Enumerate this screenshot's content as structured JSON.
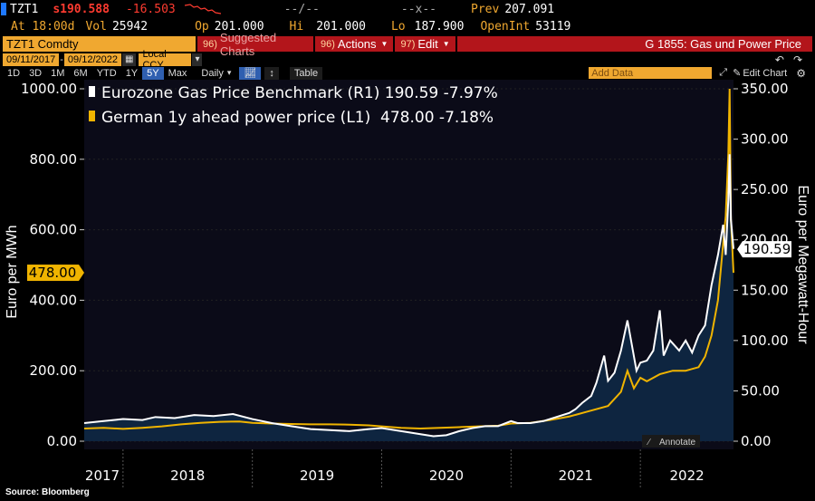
{
  "quote": {
    "ticker": "TZT1",
    "last": "s190.588",
    "change": "-16.503",
    "mid1": "--/--",
    "mid2": "--x--",
    "prev_label": "Prev",
    "prev": "207.091",
    "time_label": "At 18:00d",
    "vol_label": "Vol",
    "vol": "25942",
    "op_label": "Op",
    "op": "201.000",
    "hi_label": "Hi",
    "hi": "201.000",
    "lo_label": "Lo",
    "lo": "187.900",
    "openint_label": "OpenInt",
    "openint": "53119"
  },
  "command": {
    "security": "TZT1 Comdty",
    "suggested_num": "96)",
    "suggested": "Suggested Charts",
    "actions_num": "96)",
    "actions": "Actions",
    "edit_num": "97)",
    "edit": "Edit",
    "chart_title": "G 1855: Gas und Power Price"
  },
  "range": {
    "start": "09/11/2017",
    "end": "09/12/2022",
    "currency": "Local CCY"
  },
  "periods": [
    "1D",
    "3D",
    "1M",
    "6M",
    "YTD",
    "1Y",
    "5Y",
    "Max"
  ],
  "active_period": "5Y",
  "toolbar": {
    "frequency": "Daily",
    "table": "Table",
    "add_data_placeholder": "Add Data",
    "edit_chart": "Edit Chart"
  },
  "colors": {
    "background": "#000000",
    "plot_bg": "#0b0b18",
    "gas": "#ffffff",
    "power": "#f0b400",
    "area": "#0e2540",
    "accent": "#f0a830",
    "button_red": "#b3151b"
  },
  "chart_data": {
    "type": "line",
    "legend": [
      "Eurozone Gas Price Benchmark (R1) 190.59 -7.97%",
      "German 1y ahead power price (L1)  478.00 -7.18%"
    ],
    "left_label": "Euro per MWh",
    "right_label": "Euro per Megawatt-Hour",
    "ylim_left": [
      0,
      1000
    ],
    "ylim_right": [
      0,
      350
    ],
    "left_ticks": [
      "0.00",
      "200.00",
      "400.00",
      "600.00",
      "800.00",
      "1000.00"
    ],
    "right_ticks": [
      "0.00",
      "50.00",
      "100.00",
      "150.00",
      "200.00",
      "250.00",
      "300.00",
      "350.00"
    ],
    "x_ticks": [
      "2017",
      "2018",
      "2019",
      "2020",
      "2021",
      "2022"
    ],
    "xlim": [
      2017.7,
      2022.72
    ],
    "year_boundaries": [
      2018,
      2019,
      2020,
      2021,
      2022
    ],
    "left_last_label": "478.00",
    "right_last_label": "190.59",
    "annotate": "Annotate",
    "source": "Source: Bloomberg",
    "series": [
      {
        "name": "Eurozone Gas Price Benchmark (R1)",
        "axis": "right",
        "x": [
          2017.7,
          2017.85,
          2018.0,
          2018.15,
          2018.25,
          2018.4,
          2018.55,
          2018.7,
          2018.85,
          2019.0,
          2019.15,
          2019.3,
          2019.45,
          2019.6,
          2019.75,
          2019.9,
          2020.0,
          2020.15,
          2020.3,
          2020.4,
          2020.5,
          2020.6,
          2020.7,
          2020.8,
          2020.9,
          2021.0,
          2021.05,
          2021.15,
          2021.25,
          2021.35,
          2021.45,
          2021.5,
          2021.55,
          2021.62,
          2021.66,
          2021.72,
          2021.75,
          2021.8,
          2021.85,
          2021.9,
          2021.97,
          2022.0,
          2022.05,
          2022.1,
          2022.15,
          2022.18,
          2022.23,
          2022.3,
          2022.35,
          2022.4,
          2022.45,
          2022.5,
          2022.55,
          2022.6,
          2022.64,
          2022.66,
          2022.68,
          2022.69,
          2022.7,
          2022.72
        ],
        "values": [
          18,
          20,
          22,
          21,
          24,
          23,
          26,
          25,
          27,
          22,
          18,
          15,
          12,
          11,
          10,
          12,
          13,
          10,
          7,
          5,
          6,
          10,
          13,
          15,
          15,
          20,
          18,
          18,
          20,
          24,
          28,
          32,
          38,
          45,
          58,
          85,
          60,
          68,
          90,
          120,
          70,
          78,
          80,
          90,
          130,
          85,
          100,
          90,
          100,
          88,
          105,
          115,
          155,
          185,
          215,
          185,
          240,
          285,
          220,
          191
        ]
      },
      {
        "name": "German 1y ahead power price (L1)",
        "axis": "left",
        "x": [
          2017.7,
          2017.85,
          2018.0,
          2018.15,
          2018.3,
          2018.45,
          2018.6,
          2018.75,
          2018.9,
          2019.0,
          2019.15,
          2019.3,
          2019.45,
          2019.6,
          2019.75,
          2019.9,
          2020.0,
          2020.15,
          2020.3,
          2020.45,
          2020.6,
          2020.75,
          2020.9,
          2021.0,
          2021.15,
          2021.3,
          2021.45,
          2021.6,
          2021.75,
          2021.85,
          2021.9,
          2021.95,
          2022.0,
          2022.05,
          2022.15,
          2022.25,
          2022.35,
          2022.45,
          2022.5,
          2022.55,
          2022.6,
          2022.64,
          2022.66,
          2022.68,
          2022.69,
          2022.7,
          2022.72
        ],
        "values": [
          36,
          38,
          35,
          38,
          42,
          48,
          52,
          55,
          56,
          52,
          50,
          49,
          48,
          48,
          47,
          45,
          42,
          38,
          36,
          38,
          40,
          42,
          44,
          50,
          52,
          60,
          70,
          85,
          100,
          140,
          200,
          150,
          180,
          170,
          190,
          200,
          200,
          210,
          240,
          300,
          400,
          560,
          640,
          815,
          1000,
          630,
          478
        ]
      }
    ]
  }
}
